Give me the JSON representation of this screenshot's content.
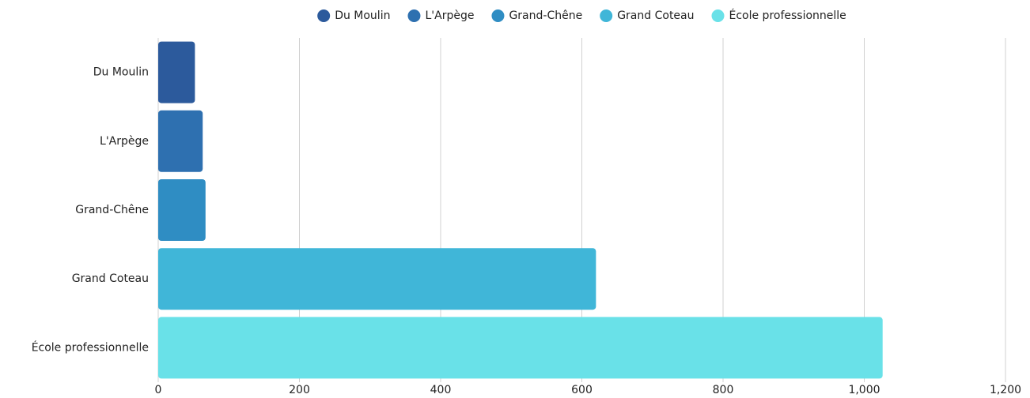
{
  "chart_data": {
    "type": "bar",
    "orientation": "horizontal",
    "categories": [
      "Du Moulin",
      "L'Arpège",
      "Grand-Chêne",
      "Grand Coteau",
      "École professionnelle"
    ],
    "series": [
      {
        "name": "Du Moulin",
        "color": "#2c5a9c",
        "values": [
          52,
          null,
          null,
          null,
          null
        ]
      },
      {
        "name": "L'Arpège",
        "color": "#2e70b0",
        "values": [
          null,
          63,
          null,
          null,
          null
        ]
      },
      {
        "name": "Grand-Chêne",
        "color": "#2f8dc3",
        "values": [
          null,
          null,
          67,
          null,
          null
        ]
      },
      {
        "name": "Grand Coteau",
        "color": "#40b6d8",
        "values": [
          null,
          null,
          null,
          620,
          null
        ]
      },
      {
        "name": "École professionnelle",
        "color": "#69e1e8",
        "values": [
          null,
          null,
          null,
          null,
          1026
        ]
      }
    ],
    "xlim": [
      0,
      1200
    ],
    "xticks": [
      0,
      200,
      400,
      600,
      800,
      {
        "value": 1000,
        "label": "1,000"
      },
      {
        "value": 1200,
        "label": "1,200"
      }
    ],
    "grid": true,
    "legend": "top"
  }
}
